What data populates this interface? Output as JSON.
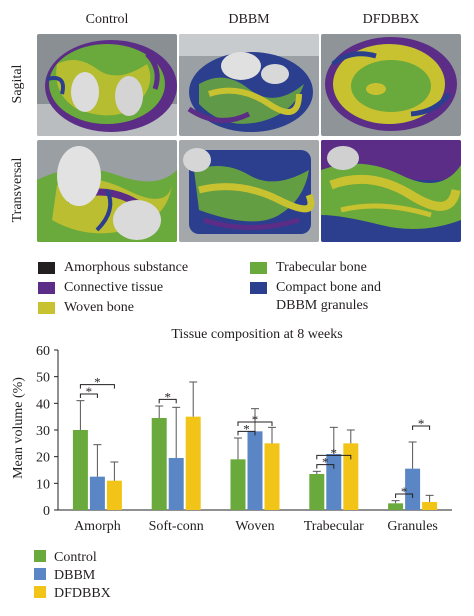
{
  "panels": {
    "columns": [
      "Control",
      "DBBM",
      "DFDBBX"
    ],
    "rows": [
      "Sagital",
      "Transversal"
    ]
  },
  "tissue_legend": [
    {
      "label": "Amorphous substance",
      "color": "#231f20"
    },
    {
      "label": "Connective tissue",
      "color": "#5b2d86"
    },
    {
      "label": "Woven bone",
      "color": "#c9c230"
    },
    {
      "label": "Trabecular bone",
      "color": "#6aa93b"
    },
    {
      "label": "Compact bone and",
      "label2": "DBBM granules",
      "color": "#2b3f8e"
    }
  ],
  "chart_data": {
    "type": "bar",
    "title": "Tissue composition at 8 weeks",
    "ylabel": "Mean volume (%)",
    "xlabel": "",
    "ylim": [
      0,
      60
    ],
    "yticks": [
      0,
      10,
      20,
      30,
      40,
      50,
      60
    ],
    "categories": [
      "Amorph",
      "Soft-conn",
      "Woven",
      "Trabecular",
      "Granules"
    ],
    "series": [
      {
        "name": "Control",
        "color": "#6aa93b",
        "values": [
          30,
          34.5,
          19,
          13.5,
          2.5
        ],
        "errors": [
          11,
          4.5,
          8,
          1,
          1
        ]
      },
      {
        "name": "DBBM",
        "color": "#5b86c5",
        "values": [
          12.5,
          19.5,
          29.5,
          21,
          15.5
        ],
        "errors": [
          12,
          19,
          8.5,
          10,
          10
        ]
      },
      {
        "name": "DFDBBX",
        "color": "#f2c417",
        "values": [
          11,
          35,
          25,
          25,
          3
        ],
        "errors": [
          7,
          13,
          6,
          5,
          2.5
        ]
      }
    ],
    "significance": [
      {
        "category": 0,
        "from": 0,
        "to": 1,
        "label": "*"
      },
      {
        "category": 0,
        "from": 0,
        "to": 2,
        "label": "*"
      },
      {
        "category": 1,
        "from": 0,
        "to": 1,
        "label": "*"
      },
      {
        "category": 2,
        "from": 0,
        "to": 1,
        "label": "*"
      },
      {
        "category": 2,
        "from": 0,
        "to": 2,
        "label": "*"
      },
      {
        "category": 3,
        "from": 0,
        "to": 1,
        "label": "*"
      },
      {
        "category": 3,
        "from": 0,
        "to": 2,
        "label": "*"
      },
      {
        "category": 4,
        "from": 0,
        "to": 1,
        "label": "*"
      },
      {
        "category": 4,
        "from": 1,
        "to": 2,
        "label": "*"
      }
    ],
    "legend_position": "bottom-left"
  }
}
